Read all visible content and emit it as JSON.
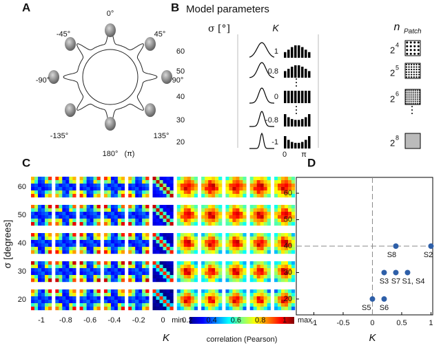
{
  "panel_a": {
    "label": "A",
    "angles": [
      "0°",
      "45°",
      "90°",
      "135°",
      "180°",
      "-135°",
      "-90°",
      "-45°"
    ],
    "pi_note": "(π)"
  },
  "panel_b": {
    "label": "B",
    "title": "Model parameters",
    "sigma_header": "σ [°]",
    "sigma_rows": [
      "60",
      "50",
      "40",
      "30",
      "20"
    ],
    "kappa_header": "K",
    "kappa_rows": [
      "1",
      "0.8",
      "0",
      "-0.8",
      "-1"
    ],
    "kappa_axis": [
      "0",
      "π"
    ],
    "patch_header": "n",
    "patch_header_sub": "Patch",
    "patch_rows": [
      {
        "base": "2",
        "exp": "4"
      },
      {
        "base": "2",
        "exp": "5"
      },
      {
        "base": "2",
        "exp": "6"
      },
      {
        "base": "2",
        "exp": "8"
      }
    ]
  },
  "panel_c": {
    "label": "C",
    "y_label": "σ [degrees]",
    "row_labels": [
      "60",
      "50",
      "40",
      "30",
      "20"
    ],
    "column_labels": [
      "-1",
      "-0.8",
      "-0.6",
      "-0.4",
      "-0.2",
      "0",
      "0.2",
      "0.4",
      "0.6",
      "0.8",
      "1"
    ],
    "x_label": "K",
    "colorbar_min": "min.",
    "colorbar_max": "max.",
    "colorbar_label": "correlation (Pearson)"
  },
  "chart_data": {
    "type": "scatter",
    "label": "D",
    "xlabel": "K",
    "x": [
      0.4,
      1,
      0.2,
      0.4,
      0.6,
      0,
      0.2
    ],
    "values": [
      40,
      40,
      30,
      30,
      30,
      20,
      20
    ],
    "point_labels": [
      "S8",
      "S2",
      "S3",
      "S7",
      "S1, S4",
      "S5",
      "S6"
    ],
    "color": "#2e5fa8",
    "xlim": [
      -1.3,
      1.03
    ],
    "ylim": [
      14,
      66
    ],
    "xticks": [
      -1,
      -0.5,
      0,
      0.5,
      1
    ],
    "yticks": [
      20,
      30,
      40,
      50,
      60
    ],
    "reference_lines": {
      "x": 0,
      "y": 40
    }
  }
}
